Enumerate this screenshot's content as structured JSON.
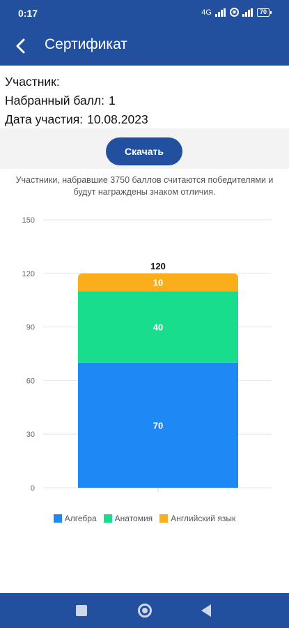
{
  "status_bar": {
    "time": "0:17",
    "network": "4G",
    "battery": "70"
  },
  "header": {
    "title": "Сертификат",
    "back_icon": "arrow-back-icon"
  },
  "info": {
    "participant_label": "Участник:",
    "participant_value": "",
    "score_label": "Набранный балл:",
    "score_value": "1",
    "date_label": "Дата участия:",
    "date_value": "10.08.2023"
  },
  "download_label": "Скачать",
  "note": "Участники, набравшие 3750 баллов считаются победителями и будут награждены знаком отличия.",
  "colors": {
    "primary": "#23509e",
    "algebra": "#1e88f5",
    "anatomy": "#17dd8d",
    "english": "#fbae1c"
  },
  "chart_data": {
    "type": "bar",
    "stacked": true,
    "categories": [
      ""
    ],
    "series": [
      {
        "name": "Алгебра",
        "values": [
          70
        ],
        "color": "#1e88f5"
      },
      {
        "name": "Анатомия",
        "values": [
          40
        ],
        "color": "#17dd8d"
      },
      {
        "name": "Английский язык",
        "values": [
          10
        ],
        "color": "#fbae1c"
      }
    ],
    "total_labels": [
      "120"
    ],
    "yticks": [
      0,
      30,
      60,
      90,
      120,
      150
    ],
    "ylim": [
      0,
      150
    ],
    "grid": true,
    "legend": "bottom"
  }
}
